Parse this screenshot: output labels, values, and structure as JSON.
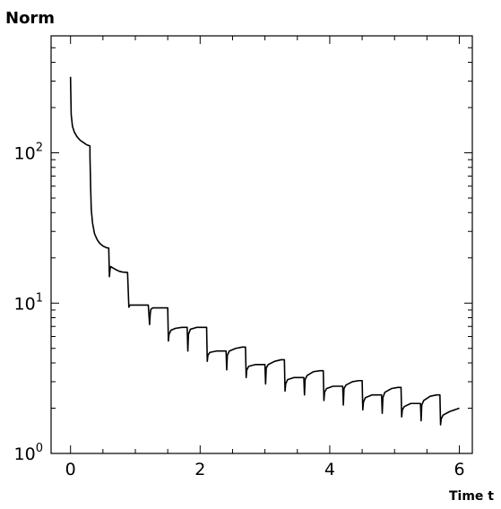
{
  "chart_data": {
    "type": "line",
    "title": "",
    "xlabel": "Time t",
    "ylabel": "Norm",
    "xlim": [
      -0.3,
      6.2
    ],
    "ylim": [
      1,
      600
    ],
    "yscale": "log",
    "grid": false,
    "legend": "none",
    "line_color": "#000000",
    "x_ticks": [
      {
        "value": 0,
        "label": "0"
      },
      {
        "value": 2,
        "label": "2"
      },
      {
        "value": 4,
        "label": "4"
      },
      {
        "value": 6,
        "label": "6"
      }
    ],
    "y_ticks": [
      {
        "value": 1,
        "base": "10",
        "exp": "0"
      },
      {
        "value": 10,
        "base": "10",
        "exp": "1"
      },
      {
        "value": 100,
        "base": "10",
        "exp": "2"
      }
    ],
    "series": [
      {
        "x": [
          0.0,
          0.01,
          0.03,
          0.06,
          0.1,
          0.15,
          0.2,
          0.25,
          0.3,
          0.3,
          0.31,
          0.32,
          0.34,
          0.37,
          0.41,
          0.45,
          0.5,
          0.55,
          0.59,
          0.6,
          0.61,
          0.62,
          0.65,
          0.7,
          0.75,
          0.8,
          0.88,
          0.9,
          0.91,
          0.92,
          0.95,
          1.0,
          1.1,
          1.2,
          1.22,
          1.23,
          1.24,
          1.27,
          1.35,
          1.45,
          1.5,
          1.51,
          1.52,
          1.55,
          1.62,
          1.72,
          1.8,
          1.81,
          1.82,
          1.85,
          1.95,
          2.05,
          2.1,
          2.11,
          2.12,
          2.15,
          2.25,
          2.35,
          2.4,
          2.41,
          2.42,
          2.45,
          2.55,
          2.65,
          2.7,
          2.71,
          2.72,
          2.75,
          2.85,
          2.95,
          3.0,
          3.01,
          3.02,
          3.05,
          3.15,
          3.25,
          3.3,
          3.31,
          3.32,
          3.35,
          3.45,
          3.55,
          3.6,
          3.61,
          3.62,
          3.65,
          3.75,
          3.85,
          3.9,
          3.91,
          3.92,
          3.95,
          4.05,
          4.15,
          4.2,
          4.21,
          4.22,
          4.25,
          4.35,
          4.45,
          4.5,
          4.51,
          4.52,
          4.55,
          4.65,
          4.75,
          4.8,
          4.81,
          4.82,
          4.85,
          4.95,
          5.05,
          5.1,
          5.11,
          5.12,
          5.15,
          5.25,
          5.35,
          5.4,
          5.41,
          5.42,
          5.45,
          5.55,
          5.65,
          5.7,
          5.71,
          5.72,
          5.75,
          5.85,
          6.0
        ],
        "values": [
          320,
          180,
          150,
          137,
          128,
          121,
          117,
          113,
          111,
          95,
          60,
          42,
          34,
          29,
          26.5,
          25,
          24,
          23.4,
          23.2,
          15.0,
          16.8,
          17.5,
          17.2,
          16.7,
          16.3,
          16.1,
          16.0,
          9.4,
          9.6,
          9.7,
          9.7,
          9.7,
          9.7,
          9.7,
          7.2,
          8.5,
          9.1,
          9.3,
          9.3,
          9.3,
          9.3,
          5.6,
          6.2,
          6.6,
          6.8,
          6.9,
          6.9,
          4.8,
          6.2,
          6.7,
          6.9,
          6.9,
          6.9,
          4.1,
          4.5,
          4.7,
          4.8,
          4.8,
          4.8,
          3.6,
          4.5,
          4.8,
          5.0,
          5.1,
          5.1,
          3.2,
          3.6,
          3.8,
          3.9,
          3.9,
          3.9,
          2.9,
          3.7,
          3.9,
          4.1,
          4.2,
          4.2,
          2.6,
          2.9,
          3.1,
          3.2,
          3.2,
          3.2,
          2.45,
          3.1,
          3.3,
          3.5,
          3.55,
          3.55,
          2.25,
          2.55,
          2.7,
          2.8,
          2.8,
          2.8,
          2.1,
          2.7,
          2.85,
          3.0,
          3.05,
          3.05,
          1.95,
          2.2,
          2.35,
          2.45,
          2.45,
          2.45,
          1.85,
          2.35,
          2.55,
          2.7,
          2.75,
          2.75,
          1.75,
          1.95,
          2.05,
          2.15,
          2.15,
          2.15,
          1.65,
          2.1,
          2.25,
          2.4,
          2.45,
          2.45,
          1.55,
          1.7,
          1.8,
          1.9,
          2.0
        ]
      }
    ]
  }
}
